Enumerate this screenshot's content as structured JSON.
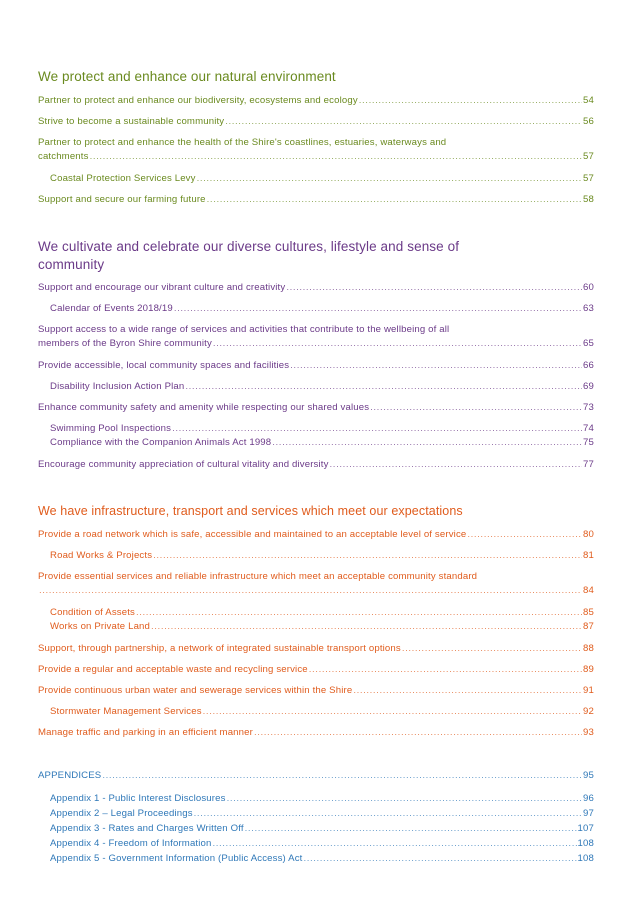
{
  "colors": {
    "environment": "#6a8a1f",
    "community": "#6b3a88",
    "infrastructure": "#e05c1d",
    "appendices": "#2f78b8"
  },
  "sections": {
    "environment": {
      "title": "We protect and enhance our natural environment",
      "entries": [
        {
          "text": "Partner to protect and enhance our biodiversity, ecosystems and ecology",
          "page": "54"
        },
        {
          "text": "Strive to become a sustainable community",
          "page": "56"
        },
        {
          "text_line1": "Partner to protect and enhance the health of the Shire's coastlines, estuaries, waterways and",
          "text_line2": "catchments",
          "page": "57"
        },
        {
          "text": "Coastal Protection Services Levy",
          "page": "57"
        },
        {
          "text": "Support and secure our farming future",
          "page": "58"
        }
      ]
    },
    "community": {
      "title_line1": "We cultivate and celebrate our diverse cultures, lifestyle and sense of",
      "title_line2": "community",
      "entries": [
        {
          "text": "Support and encourage our vibrant culture and creativity",
          "page": "60"
        },
        {
          "text": "Calendar of Events 2018/19",
          "page": "63"
        },
        {
          "text_line1": "Support access to a wide range of services and activities that contribute to the wellbeing of all",
          "text_line2": "members of the Byron Shire community",
          "page": "65"
        },
        {
          "text": "Provide accessible, local community spaces and facilities",
          "page": "66"
        },
        {
          "text": "Disability Inclusion Action Plan",
          "page": "69"
        },
        {
          "text": "Enhance community safety and amenity while respecting our shared values",
          "page": "73"
        },
        {
          "text": "Swimming Pool Inspections",
          "page": "74"
        },
        {
          "text": "Compliance with the Companion Animals Act 1998",
          "page": "75"
        },
        {
          "text": "Encourage community appreciation of cultural vitality and diversity",
          "page": "77"
        }
      ]
    },
    "infrastructure": {
      "title": "We have infrastructure, transport and services which meet our expectations",
      "entries": [
        {
          "text": "Provide a road network which is safe, accessible and maintained to an acceptable level of service",
          "page": "80"
        },
        {
          "text": "Road Works & Projects",
          "page": "81"
        },
        {
          "text_line1": "Provide essential services and reliable infrastructure which meet an acceptable community standard",
          "text_line2": "",
          "page": "84"
        },
        {
          "text": "Condition of Assets",
          "page": "85"
        },
        {
          "text": "Works on Private Land",
          "page": "87"
        },
        {
          "text": "Support, through partnership, a network of integrated sustainable transport options",
          "page": "88"
        },
        {
          "text": "Provide a regular and acceptable waste and recycling service",
          "page": "89"
        },
        {
          "text": "Provide continuous urban water and sewerage services within the Shire",
          "page": "91"
        },
        {
          "text": "Stormwater Management Services",
          "page": "92"
        },
        {
          "text": "Manage traffic and parking in an efficient manner",
          "page": "93"
        }
      ]
    },
    "appendices": {
      "entries": [
        {
          "text": "APPENDICES",
          "page": "95"
        },
        {
          "text": "Appendix 1 - Public Interest Disclosures",
          "page": "96"
        },
        {
          "text": "Appendix 2 – Legal Proceedings",
          "page": "97"
        },
        {
          "text": "Appendix 3 - Rates and Charges Written Off",
          "page": "107"
        },
        {
          "text": "Appendix 4 - Freedom of Information",
          "page": "108"
        },
        {
          "text": "Appendix 5 - Government Information (Public Access) Act",
          "page": "108"
        }
      ]
    }
  }
}
